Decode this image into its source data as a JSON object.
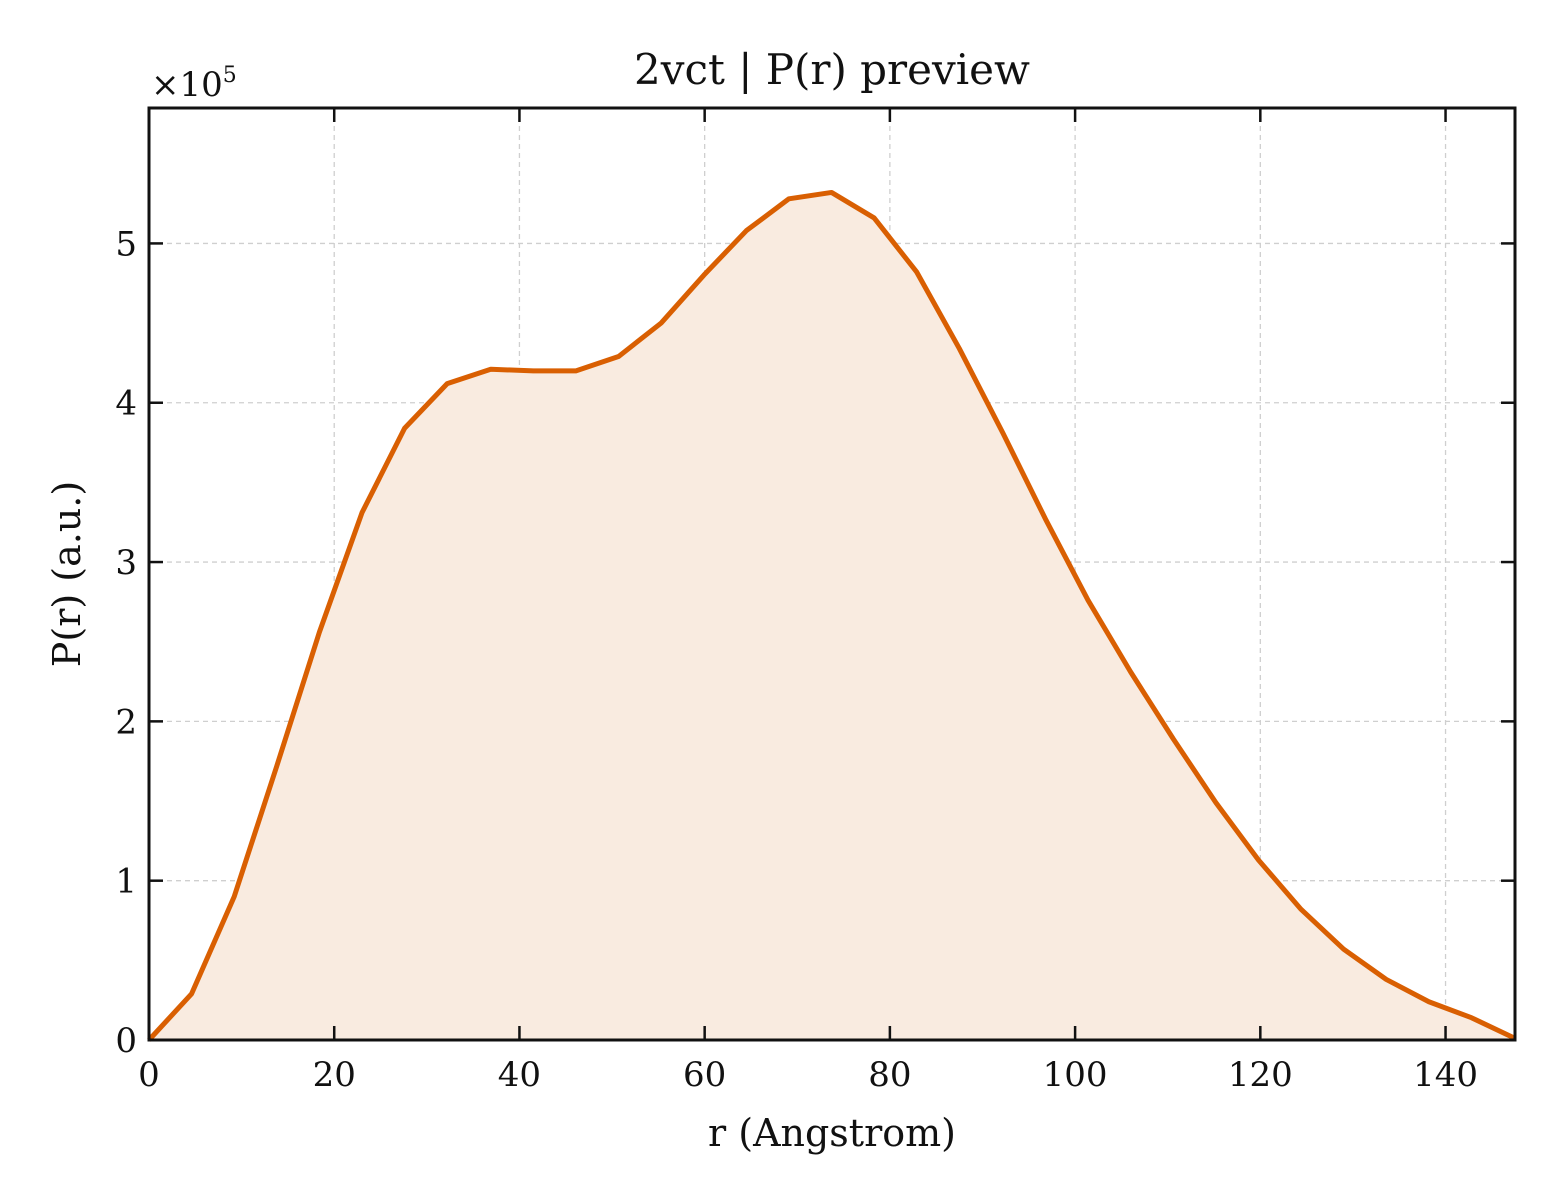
{
  "chart_data": {
    "type": "area",
    "title": "2vct | P(r) preview",
    "xlabel": "r (Angstrom)",
    "ylabel": "P(r) (a.u.)",
    "y_offset_text": "×10",
    "y_offset_exponent": "5",
    "xlim": [
      0,
      147.5
    ],
    "ylim": [
      0,
      5.85
    ],
    "y_scale": 100000,
    "xticks": [
      0,
      20,
      40,
      60,
      80,
      100,
      120,
      140
    ],
    "yticks": [
      0,
      1,
      2,
      3,
      4,
      5
    ],
    "grid": true,
    "line_color": "#d95f02",
    "fill_color": "#f9ebe0",
    "series": [
      {
        "x": [
          0,
          4.6,
          9.2,
          13.8,
          18.4,
          23.0,
          27.6,
          32.2,
          36.9,
          41.5,
          46.1,
          50.7,
          55.3,
          59.9,
          64.5,
          69.1,
          73.7,
          78.3,
          82.9,
          87.5,
          92.2,
          96.8,
          101.4,
          106.0,
          110.6,
          115.2,
          119.8,
          124.4,
          129.0,
          133.6,
          138.2,
          142.8,
          147.5
        ],
        "y": [
          0,
          0.29,
          0.9,
          1.72,
          2.56,
          3.31,
          3.84,
          4.12,
          4.21,
          4.2,
          4.2,
          4.29,
          4.5,
          4.8,
          5.08,
          5.28,
          5.32,
          5.16,
          4.82,
          4.34,
          3.81,
          3.27,
          2.76,
          2.31,
          1.89,
          1.49,
          1.13,
          0.82,
          0.57,
          0.38,
          0.24,
          0.14,
          0.01
        ]
      }
    ]
  }
}
